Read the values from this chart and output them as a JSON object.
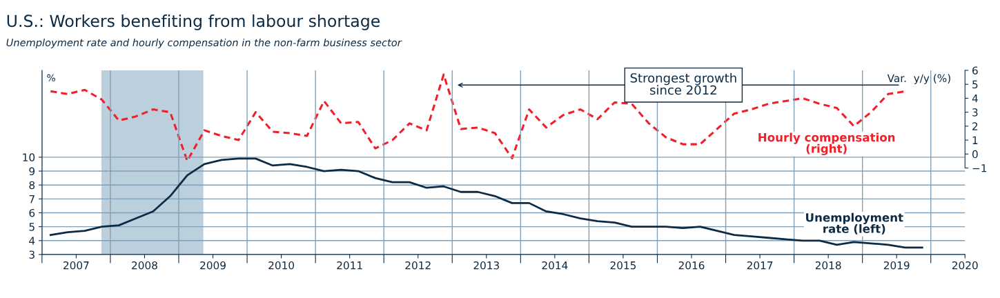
{
  "chart_data": {
    "type": "line",
    "title": "U.S.: Workers benefiting from labour shortage",
    "subtitle": "Unemployment rate and hourly compensation in the non-farm business sector",
    "ylabel": "%",
    "y2label": "Var.  y/y (%)",
    "xlim": [
      2007.0,
      2020.5
    ],
    "xticks": [
      {
        "value": 2007,
        "label": null
      },
      {
        "value": 2007.5,
        "label": "2007"
      },
      {
        "value": 2008,
        "label": null
      },
      {
        "value": 2008.5,
        "label": "2008"
      },
      {
        "value": 2009,
        "label": null
      },
      {
        "value": 2009.5,
        "label": "2009"
      },
      {
        "value": 2010,
        "label": null
      },
      {
        "value": 2010.5,
        "label": "2010"
      },
      {
        "value": 2011,
        "label": null
      },
      {
        "value": 2011.5,
        "label": "2011"
      },
      {
        "value": 2012,
        "label": null
      },
      {
        "value": 2012.5,
        "label": "2012"
      },
      {
        "value": 2013,
        "label": null
      },
      {
        "value": 2013.5,
        "label": "2013"
      },
      {
        "value": 2014,
        "label": null
      },
      {
        "value": 2014.5,
        "label": "2014"
      },
      {
        "value": 2015,
        "label": null
      },
      {
        "value": 2015.5,
        "label": "2015"
      },
      {
        "value": 2016,
        "label": null
      },
      {
        "value": 2016.5,
        "label": "2016"
      },
      {
        "value": 2017,
        "label": null
      },
      {
        "value": 2017.5,
        "label": "2017"
      },
      {
        "value": 2018,
        "label": null
      },
      {
        "value": 2018.5,
        "label": "2018"
      },
      {
        "value": 2019,
        "label": null
      },
      {
        "value": 2019.5,
        "label": "2019"
      },
      {
        "value": 2020,
        "label": null
      },
      {
        "value": 2020.5,
        "label": "2020"
      }
    ],
    "ylim": [
      3,
      16.25
    ],
    "yticks": [
      3,
      4,
      5,
      6,
      7,
      8,
      9,
      10
    ],
    "y2lim": [
      -7.2,
      6
    ],
    "y2ticks": [
      {
        "value": -1,
        "label": "−1"
      },
      0,
      1,
      2,
      3,
      4,
      5,
      6
    ],
    "grid": true,
    "legend": false,
    "series": [
      {
        "name": "Unemployment rate (left)",
        "color": "#0d2b45",
        "line_style": "solid",
        "x": [
          2007.125,
          2007.375,
          2007.625,
          2007.875,
          2008.125,
          2008.375,
          2008.625,
          2008.875,
          2009.125,
          2009.375,
          2009.625,
          2009.875,
          2010.125,
          2010.375,
          2010.625,
          2010.875,
          2011.125,
          2011.375,
          2011.625,
          2011.875,
          2012.125,
          2012.375,
          2012.625,
          2012.875,
          2013.125,
          2013.375,
          2013.625,
          2013.875,
          2014.125,
          2014.375,
          2014.625,
          2014.875,
          2015.125,
          2015.375,
          2015.625,
          2015.875,
          2016.125,
          2016.375,
          2016.625,
          2016.875,
          2017.125,
          2017.375,
          2017.625,
          2017.875,
          2018.125,
          2018.375,
          2018.625,
          2018.875,
          2019.125,
          2019.375,
          2019.625,
          2019.875
        ],
        "values": [
          4.4,
          4.6,
          4.7,
          5.0,
          5.1,
          5.6,
          6.1,
          7.2,
          8.7,
          9.5,
          9.8,
          9.9,
          9.9,
          9.4,
          9.5,
          9.3,
          9.0,
          9.1,
          9.0,
          8.5,
          8.2,
          8.2,
          7.8,
          7.9,
          7.5,
          7.5,
          7.2,
          6.7,
          6.7,
          6.1,
          5.9,
          5.6,
          5.4,
          5.3,
          5.0,
          5.0,
          5.0,
          4.9,
          5.0,
          4.7,
          4.4,
          4.3,
          4.2,
          4.1,
          4.0,
          4.0,
          3.7,
          3.9,
          3.8,
          3.7,
          3.5,
          3.5
        ]
      },
      {
        "name": "Hourly compensation (right)",
        "color": "#f0202a",
        "axis": "y2",
        "line_style": "dashed",
        "x": [
          2007.125,
          2007.375,
          2007.625,
          2007.875,
          2008.125,
          2008.375,
          2008.625,
          2008.875,
          2009.125,
          2009.375,
          2009.625,
          2009.875,
          2010.125,
          2010.375,
          2010.625,
          2010.875,
          2011.125,
          2011.375,
          2011.625,
          2011.875,
          2012.125,
          2012.375,
          2012.625,
          2012.875,
          2013.125,
          2013.375,
          2013.625,
          2013.875,
          2014.125,
          2014.375,
          2014.625,
          2014.875,
          2015.125,
          2015.375,
          2015.625,
          2015.875,
          2016.125,
          2016.375,
          2016.625,
          2016.875,
          2017.125,
          2017.375,
          2017.625,
          2017.875,
          2018.125,
          2018.375,
          2018.625,
          2018.875,
          2019.125,
          2019.375,
          2019.625
        ],
        "values": [
          4.5,
          4.3,
          4.6,
          3.9,
          2.4,
          2.7,
          3.2,
          3.0,
          -0.5,
          1.7,
          1.3,
          1.0,
          3.0,
          1.6,
          1.5,
          1.3,
          3.8,
          2.2,
          2.3,
          0.4,
          1.0,
          2.2,
          1.7,
          5.7,
          1.8,
          1.9,
          1.5,
          -0.3,
          3.2,
          1.9,
          2.8,
          3.2,
          2.5,
          3.7,
          3.6,
          2.2,
          1.2,
          0.7,
          0.7,
          1.8,
          2.9,
          3.2,
          3.6,
          3.8,
          4.0,
          3.6,
          3.3,
          2.0,
          3.0,
          4.3,
          4.5
        ]
      }
    ],
    "bands": [
      {
        "axis": "x",
        "from": 2007.87,
        "to": 2009.36,
        "color": "#bccfdd"
      }
    ],
    "annotations": [
      "Strongest growth\nsince 2012"
    ]
  }
}
